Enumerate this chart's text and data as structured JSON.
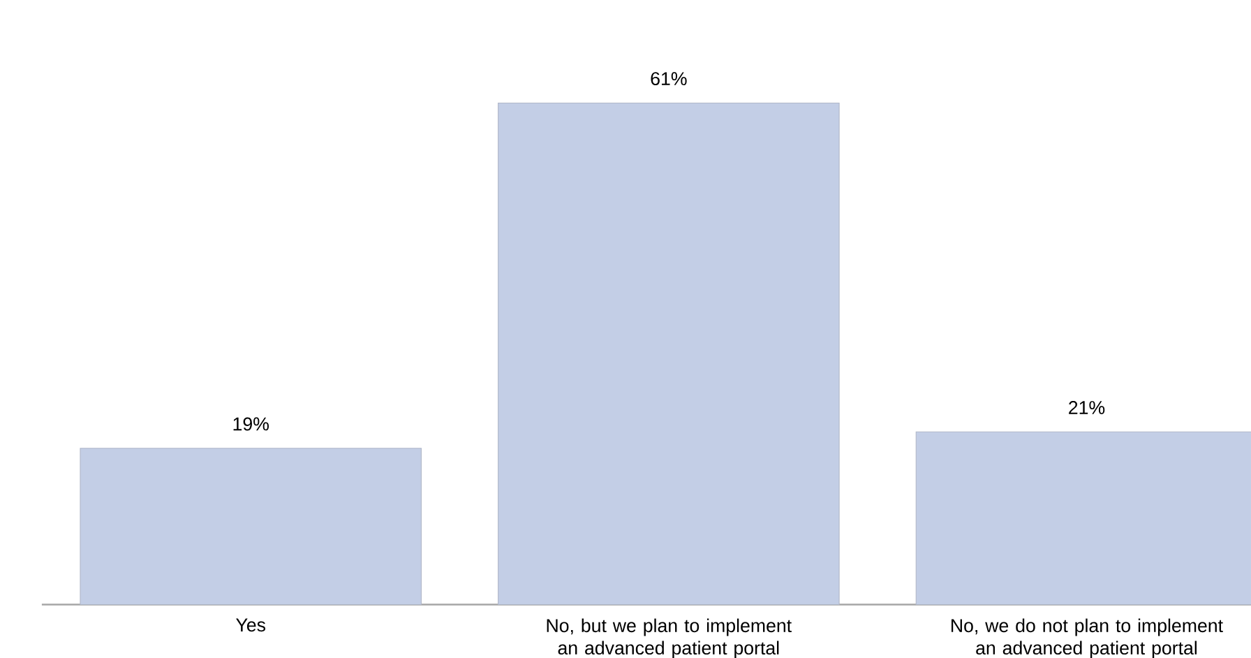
{
  "chart_data": {
    "type": "bar",
    "categories": [
      "Yes",
      "No, but we plan to implement an advanced patient portal",
      "No, we do not plan to implement an advanced patient portal"
    ],
    "values": [
      19,
      61,
      21
    ],
    "value_labels": [
      "19%",
      "61%",
      "21%"
    ],
    "color": "#c3cee6"
  }
}
